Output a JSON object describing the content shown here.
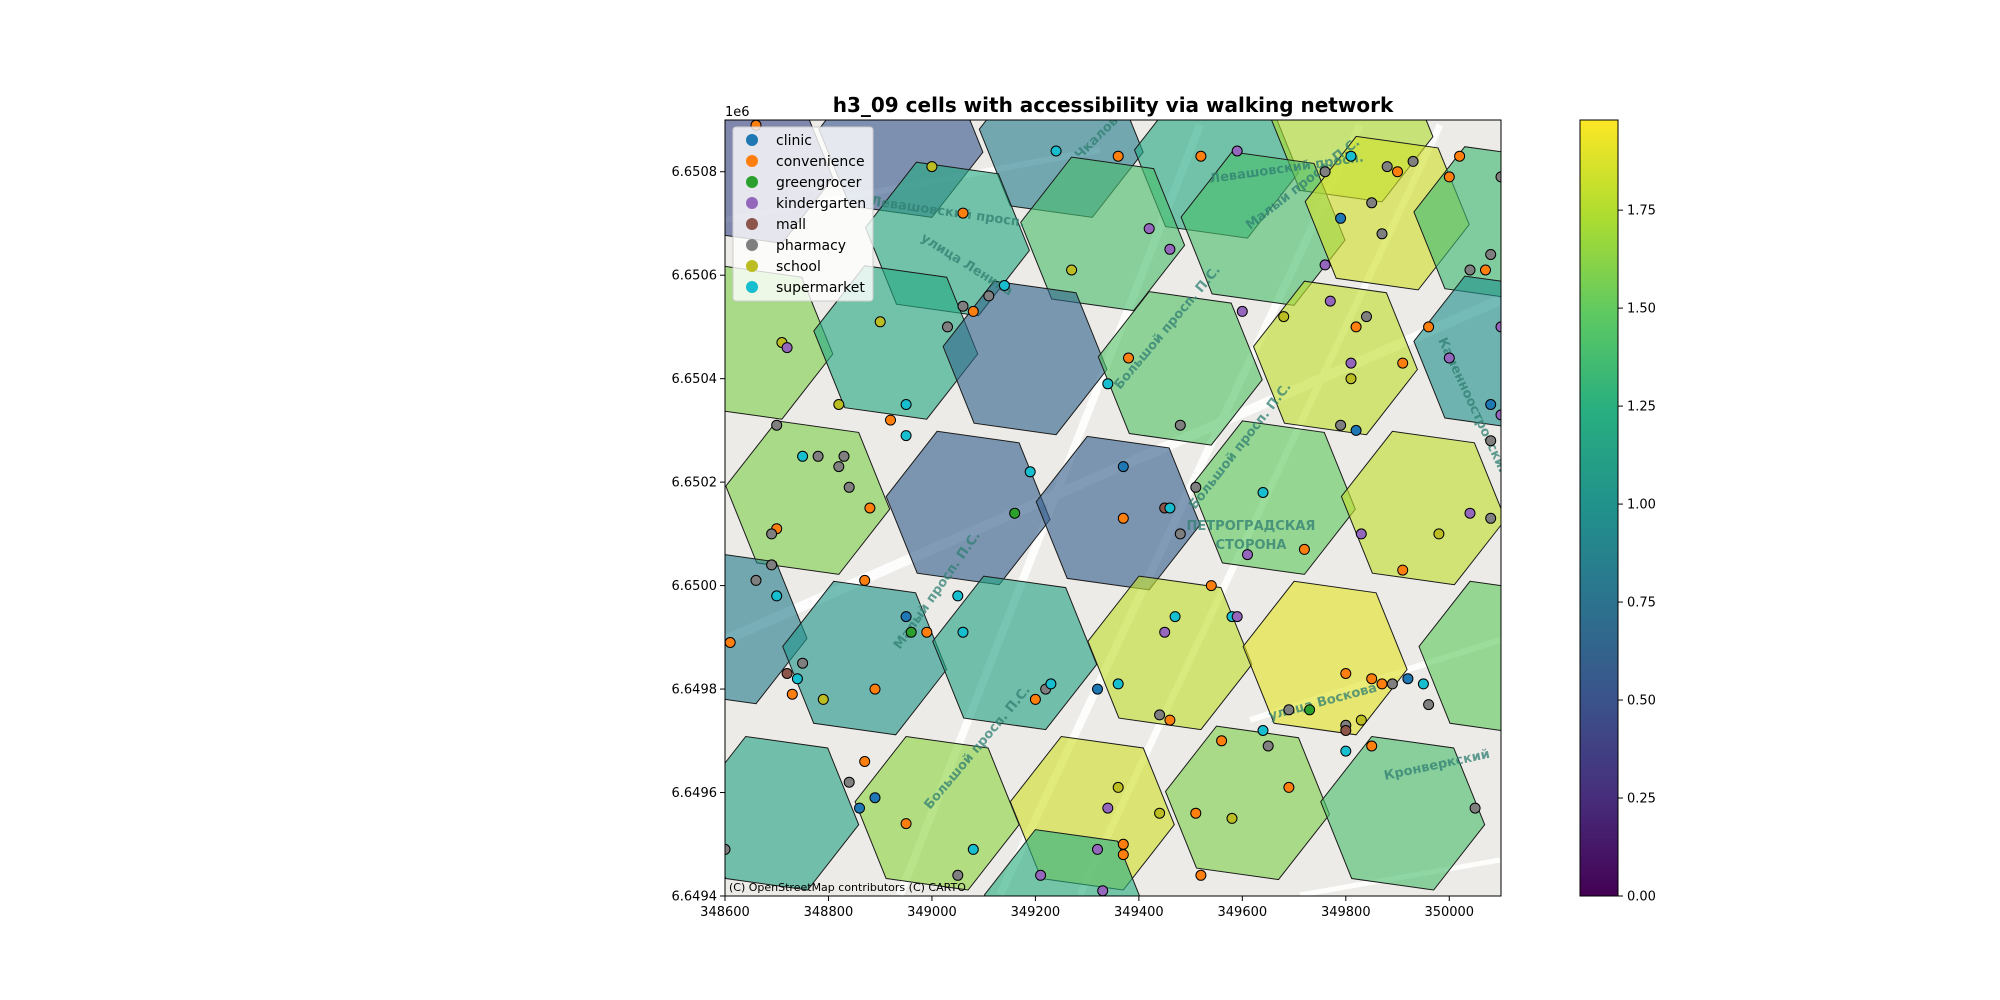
{
  "chart_data": {
    "type": "scatter",
    "title": "h3_09 cells with accessibility via walking network",
    "xlabel": "",
    "ylabel": "",
    "y_offset_label": "1e6",
    "xlim": [
      348600,
      350100
    ],
    "ylim": [
      6649400,
      6650900
    ],
    "x_ticks": [
      348600,
      348800,
      349000,
      349200,
      349400,
      349600,
      349800,
      350000
    ],
    "x_tick_labels": [
      "348600",
      "348800",
      "349000",
      "349200",
      "349400",
      "349600",
      "349800",
      "350000"
    ],
    "y_ticks": [
      6649400,
      6649600,
      6649800,
      6650000,
      6650200,
      6650400,
      6650600,
      6650800
    ],
    "y_tick_labels": [
      "6.6494",
      "6.6496",
      "6.6498",
      "6.6500",
      "6.6502",
      "6.6504",
      "6.6506",
      "6.6508"
    ],
    "grid": false,
    "legend_position": "top-left",
    "colorbar": {
      "colormap": "viridis",
      "range": [
        0,
        1.98
      ],
      "ticks": [
        0.0,
        0.25,
        0.5,
        0.75,
        1.0,
        1.25,
        1.5,
        1.75
      ],
      "tick_labels": [
        "0.00",
        "0.25",
        "0.50",
        "0.75",
        "1.00",
        "1.25",
        "1.50",
        "1.75"
      ]
    },
    "basemap_labels": [
      "ПЕТРОГРАДСКАЯ",
      "СТОРОНА",
      "Левашовский просп.",
      "улица Ленина",
      "Малый просп. П.С.",
      "Большой просп. П.С.",
      "Каменноостровский просп.",
      "улица Воскова",
      "Кронверкский",
      "Чкаловский просп."
    ],
    "attribution": "(C) OpenStreetMap contributors (C) CARTO",
    "categories": [
      {
        "name": "clinic",
        "color": "#1f77b4"
      },
      {
        "name": "convenience",
        "color": "#ff7f0e"
      },
      {
        "name": "greengrocer",
        "color": "#2ca02c"
      },
      {
        "name": "kindergarten",
        "color": "#9467bd"
      },
      {
        "name": "mall",
        "color": "#8c564b"
      },
      {
        "name": "pharmacy",
        "color": "#7f7f7f"
      },
      {
        "name": "school",
        "color": "#bcbd22"
      },
      {
        "name": "supermarket",
        "color": "#17becf"
      }
    ],
    "hex_cells": [
      {
        "x": 348650,
        "y": 6650810,
        "value": 0.45
      },
      {
        "x": 348940,
        "y": 6650860,
        "value": 0.55
      },
      {
        "x": 349250,
        "y": 6650860,
        "value": 0.85
      },
      {
        "x": 349550,
        "y": 6650820,
        "value": 1.2
      },
      {
        "x": 349810,
        "y": 6650890,
        "value": 1.75
      },
      {
        "x": 349030,
        "y": 6650670,
        "value": 1.2
      },
      {
        "x": 349330,
        "y": 6650680,
        "value": 1.4
      },
      {
        "x": 349640,
        "y": 6650690,
        "value": 1.4
      },
      {
        "x": 349880,
        "y": 6650720,
        "value": 1.85
      },
      {
        "x": 350090,
        "y": 6650700,
        "value": 1.35
      },
      {
        "x": 348650,
        "y": 6650470,
        "value": 1.6
      },
      {
        "x": 348930,
        "y": 6650470,
        "value": 1.2
      },
      {
        "x": 349180,
        "y": 6650440,
        "value": 0.65
      },
      {
        "x": 349480,
        "y": 6650420,
        "value": 1.45
      },
      {
        "x": 349780,
        "y": 6650440,
        "value": 1.8
      },
      {
        "x": 350090,
        "y": 6650450,
        "value": 1.0
      },
      {
        "x": 348760,
        "y": 6650170,
        "value": 1.6
      },
      {
        "x": 349070,
        "y": 6650150,
        "value": 0.6
      },
      {
        "x": 349360,
        "y": 6650140,
        "value": 0.6
      },
      {
        "x": 349660,
        "y": 6650170,
        "value": 1.5
      },
      {
        "x": 349950,
        "y": 6650150,
        "value": 1.8
      },
      {
        "x": 348600,
        "y": 6649920,
        "value": 0.85
      },
      {
        "x": 348870,
        "y": 6649860,
        "value": 1.05
      },
      {
        "x": 349160,
        "y": 6649870,
        "value": 1.15
      },
      {
        "x": 349460,
        "y": 6649870,
        "value": 1.8
      },
      {
        "x": 349760,
        "y": 6649860,
        "value": 1.9
      },
      {
        "x": 350100,
        "y": 6649860,
        "value": 1.5
      },
      {
        "x": 348700,
        "y": 6649560,
        "value": 1.15
      },
      {
        "x": 349010,
        "y": 6649560,
        "value": 1.65
      },
      {
        "x": 349310,
        "y": 6649560,
        "value": 1.85
      },
      {
        "x": 349610,
        "y": 6649580,
        "value": 1.6
      },
      {
        "x": 349910,
        "y": 6649560,
        "value": 1.4
      },
      {
        "x": 349260,
        "y": 6649380,
        "value": 1.25
      }
    ],
    "points": [
      {
        "x": 348660,
        "y": 6650890,
        "category": "convenience"
      },
      {
        "x": 349000,
        "y": 6650810,
        "category": "school"
      },
      {
        "x": 349060,
        "y": 6650720,
        "category": "convenience"
      },
      {
        "x": 349240,
        "y": 6650840,
        "category": "supermarket"
      },
      {
        "x": 349360,
        "y": 6650830,
        "category": "convenience"
      },
      {
        "x": 349520,
        "y": 6650830,
        "category": "convenience"
      },
      {
        "x": 349590,
        "y": 6650840,
        "category": "kindergarten"
      },
      {
        "x": 349760,
        "y": 6650800,
        "category": "pharmacy"
      },
      {
        "x": 349810,
        "y": 6650830,
        "category": "supermarket"
      },
      {
        "x": 349880,
        "y": 6650810,
        "category": "pharmacy"
      },
      {
        "x": 349900,
        "y": 6650800,
        "category": "convenience"
      },
      {
        "x": 349930,
        "y": 6650820,
        "category": "pharmacy"
      },
      {
        "x": 350000,
        "y": 6650790,
        "category": "convenience"
      },
      {
        "x": 350020,
        "y": 6650830,
        "category": "convenience"
      },
      {
        "x": 350100,
        "y": 6650790,
        "category": "pharmacy"
      },
      {
        "x": 349850,
        "y": 6650740,
        "category": "pharmacy"
      },
      {
        "x": 349790,
        "y": 6650710,
        "category": "clinic"
      },
      {
        "x": 349870,
        "y": 6650680,
        "category": "pharmacy"
      },
      {
        "x": 349420,
        "y": 6650690,
        "category": "kindergarten"
      },
      {
        "x": 349460,
        "y": 6650650,
        "category": "kindergarten"
      },
      {
        "x": 349760,
        "y": 6650620,
        "category": "kindergarten"
      },
      {
        "x": 349140,
        "y": 6650580,
        "category": "supermarket"
      },
      {
        "x": 349270,
        "y": 6650610,
        "category": "school"
      },
      {
        "x": 349110,
        "y": 6650560,
        "category": "pharmacy"
      },
      {
        "x": 349060,
        "y": 6650540,
        "category": "pharmacy"
      },
      {
        "x": 349080,
        "y": 6650530,
        "category": "convenience"
      },
      {
        "x": 349030,
        "y": 6650500,
        "category": "pharmacy"
      },
      {
        "x": 348900,
        "y": 6650510,
        "category": "school"
      },
      {
        "x": 348710,
        "y": 6650470,
        "category": "school"
      },
      {
        "x": 348720,
        "y": 6650460,
        "category": "kindergarten"
      },
      {
        "x": 349600,
        "y": 6650530,
        "category": "kindergarten"
      },
      {
        "x": 349680,
        "y": 6650520,
        "category": "school"
      },
      {
        "x": 349770,
        "y": 6650550,
        "category": "kindergarten"
      },
      {
        "x": 349840,
        "y": 6650520,
        "category": "pharmacy"
      },
      {
        "x": 349820,
        "y": 6650500,
        "category": "convenience"
      },
      {
        "x": 349960,
        "y": 6650500,
        "category": "convenience"
      },
      {
        "x": 350040,
        "y": 6650610,
        "category": "pharmacy"
      },
      {
        "x": 350070,
        "y": 6650610,
        "category": "convenience"
      },
      {
        "x": 350080,
        "y": 6650640,
        "category": "pharmacy"
      },
      {
        "x": 350100,
        "y": 6650500,
        "category": "kindergarten"
      },
      {
        "x": 349910,
        "y": 6650430,
        "category": "convenience"
      },
      {
        "x": 349810,
        "y": 6650430,
        "category": "kindergarten"
      },
      {
        "x": 349810,
        "y": 6650400,
        "category": "school"
      },
      {
        "x": 350000,
        "y": 6650440,
        "category": "kindergarten"
      },
      {
        "x": 349380,
        "y": 6650440,
        "category": "convenience"
      },
      {
        "x": 349340,
        "y": 6650390,
        "category": "supermarket"
      },
      {
        "x": 349480,
        "y": 6650310,
        "category": "pharmacy"
      },
      {
        "x": 349790,
        "y": 6650310,
        "category": "pharmacy"
      },
      {
        "x": 349820,
        "y": 6650300,
        "category": "clinic"
      },
      {
        "x": 350080,
        "y": 6650350,
        "category": "clinic"
      },
      {
        "x": 350100,
        "y": 6650330,
        "category": "kindergarten"
      },
      {
        "x": 350080,
        "y": 6650280,
        "category": "pharmacy"
      },
      {
        "x": 348700,
        "y": 6650310,
        "category": "pharmacy"
      },
      {
        "x": 348820,
        "y": 6650350,
        "category": "school"
      },
      {
        "x": 348920,
        "y": 6650320,
        "category": "convenience"
      },
      {
        "x": 348950,
        "y": 6650350,
        "category": "supermarket"
      },
      {
        "x": 348950,
        "y": 6650290,
        "category": "supermarket"
      },
      {
        "x": 348750,
        "y": 6650250,
        "category": "supermarket"
      },
      {
        "x": 348780,
        "y": 6650250,
        "category": "pharmacy"
      },
      {
        "x": 348830,
        "y": 6650250,
        "category": "pharmacy"
      },
      {
        "x": 348820,
        "y": 6650230,
        "category": "pharmacy"
      },
      {
        "x": 348840,
        "y": 6650190,
        "category": "pharmacy"
      },
      {
        "x": 348880,
        "y": 6650150,
        "category": "convenience"
      },
      {
        "x": 348700,
        "y": 6650110,
        "category": "convenience"
      },
      {
        "x": 348690,
        "y": 6650100,
        "category": "pharmacy"
      },
      {
        "x": 348690,
        "y": 6650040,
        "category": "pharmacy"
      },
      {
        "x": 348660,
        "y": 6650010,
        "category": "pharmacy"
      },
      {
        "x": 348700,
        "y": 6649980,
        "category": "supermarket"
      },
      {
        "x": 348870,
        "y": 6650010,
        "category": "convenience"
      },
      {
        "x": 349190,
        "y": 6650220,
        "category": "supermarket"
      },
      {
        "x": 349160,
        "y": 6650140,
        "category": "greengrocer"
      },
      {
        "x": 349370,
        "y": 6650230,
        "category": "clinic"
      },
      {
        "x": 349370,
        "y": 6650130,
        "category": "convenience"
      },
      {
        "x": 349450,
        "y": 6650150,
        "category": "mall"
      },
      {
        "x": 349460,
        "y": 6650150,
        "category": "supermarket"
      },
      {
        "x": 349480,
        "y": 6650100,
        "category": "pharmacy"
      },
      {
        "x": 349510,
        "y": 6650190,
        "category": "pharmacy"
      },
      {
        "x": 349640,
        "y": 6650180,
        "category": "supermarket"
      },
      {
        "x": 349610,
        "y": 6650060,
        "category": "kindergarten"
      },
      {
        "x": 349720,
        "y": 6650070,
        "category": "convenience"
      },
      {
        "x": 349540,
        "y": 6650000,
        "category": "convenience"
      },
      {
        "x": 349830,
        "y": 6650100,
        "category": "kindergarten"
      },
      {
        "x": 349910,
        "y": 6650030,
        "category": "convenience"
      },
      {
        "x": 349980,
        "y": 6650100,
        "category": "school"
      },
      {
        "x": 350040,
        "y": 6650140,
        "category": "kindergarten"
      },
      {
        "x": 350080,
        "y": 6650130,
        "category": "pharmacy"
      },
      {
        "x": 349050,
        "y": 6649980,
        "category": "supermarket"
      },
      {
        "x": 348950,
        "y": 6649940,
        "category": "clinic"
      },
      {
        "x": 348960,
        "y": 6649910,
        "category": "greengrocer"
      },
      {
        "x": 348990,
        "y": 6649910,
        "category": "convenience"
      },
      {
        "x": 349060,
        "y": 6649910,
        "category": "supermarket"
      },
      {
        "x": 348610,
        "y": 6649890,
        "category": "convenience"
      },
      {
        "x": 348750,
        "y": 6649850,
        "category": "pharmacy"
      },
      {
        "x": 348720,
        "y": 6649830,
        "category": "mall"
      },
      {
        "x": 348740,
        "y": 6649820,
        "category": "supermarket"
      },
      {
        "x": 348730,
        "y": 6649790,
        "category": "convenience"
      },
      {
        "x": 348790,
        "y": 6649780,
        "category": "school"
      },
      {
        "x": 348890,
        "y": 6649800,
        "category": "convenience"
      },
      {
        "x": 349200,
        "y": 6649780,
        "category": "convenience"
      },
      {
        "x": 349220,
        "y": 6649800,
        "category": "pharmacy"
      },
      {
        "x": 349230,
        "y": 6649810,
        "category": "supermarket"
      },
      {
        "x": 349320,
        "y": 6649800,
        "category": "clinic"
      },
      {
        "x": 349360,
        "y": 6649810,
        "category": "supermarket"
      },
      {
        "x": 349450,
        "y": 6649910,
        "category": "kindergarten"
      },
      {
        "x": 349470,
        "y": 6649940,
        "category": "supermarket"
      },
      {
        "x": 349580,
        "y": 6649940,
        "category": "supermarket"
      },
      {
        "x": 349590,
        "y": 6649940,
        "category": "kindergarten"
      },
      {
        "x": 349440,
        "y": 6649750,
        "category": "pharmacy"
      },
      {
        "x": 349460,
        "y": 6649740,
        "category": "convenience"
      },
      {
        "x": 349560,
        "y": 6649700,
        "category": "convenience"
      },
      {
        "x": 349640,
        "y": 6649720,
        "category": "supermarket"
      },
      {
        "x": 349650,
        "y": 6649690,
        "category": "pharmacy"
      },
      {
        "x": 349690,
        "y": 6649760,
        "category": "pharmacy"
      },
      {
        "x": 349730,
        "y": 6649760,
        "category": "greengrocer"
      },
      {
        "x": 349800,
        "y": 6649830,
        "category": "convenience"
      },
      {
        "x": 349850,
        "y": 6649820,
        "category": "convenience"
      },
      {
        "x": 349870,
        "y": 6649810,
        "category": "convenience"
      },
      {
        "x": 349890,
        "y": 6649810,
        "category": "pharmacy"
      },
      {
        "x": 349920,
        "y": 6649820,
        "category": "clinic"
      },
      {
        "x": 349950,
        "y": 6649810,
        "category": "supermarket"
      },
      {
        "x": 349960,
        "y": 6649770,
        "category": "pharmacy"
      },
      {
        "x": 349800,
        "y": 6649730,
        "category": "pharmacy"
      },
      {
        "x": 349800,
        "y": 6649720,
        "category": "mall"
      },
      {
        "x": 349830,
        "y": 6649740,
        "category": "school"
      },
      {
        "x": 349850,
        "y": 6649690,
        "category": "convenience"
      },
      {
        "x": 349800,
        "y": 6649680,
        "category": "supermarket"
      },
      {
        "x": 348870,
        "y": 6649660,
        "category": "convenience"
      },
      {
        "x": 348840,
        "y": 6649620,
        "category": "pharmacy"
      },
      {
        "x": 348890,
        "y": 6649590,
        "category": "clinic"
      },
      {
        "x": 348860,
        "y": 6649570,
        "category": "clinic"
      },
      {
        "x": 348950,
        "y": 6649540,
        "category": "convenience"
      },
      {
        "x": 349080,
        "y": 6649490,
        "category": "supermarket"
      },
      {
        "x": 349050,
        "y": 6649440,
        "category": "pharmacy"
      },
      {
        "x": 349210,
        "y": 6649440,
        "category": "kindergarten"
      },
      {
        "x": 349330,
        "y": 6649410,
        "category": "kindergarten"
      },
      {
        "x": 349320,
        "y": 6649490,
        "category": "kindergarten"
      },
      {
        "x": 349340,
        "y": 6649570,
        "category": "kindergarten"
      },
      {
        "x": 349360,
        "y": 6649610,
        "category": "school"
      },
      {
        "x": 349370,
        "y": 6649500,
        "category": "convenience"
      },
      {
        "x": 349370,
        "y": 6649480,
        "category": "convenience"
      },
      {
        "x": 349440,
        "y": 6649560,
        "category": "school"
      },
      {
        "x": 349510,
        "y": 6649560,
        "category": "convenience"
      },
      {
        "x": 349580,
        "y": 6649550,
        "category": "school"
      },
      {
        "x": 349520,
        "y": 6649440,
        "category": "convenience"
      },
      {
        "x": 349690,
        "y": 6649610,
        "category": "convenience"
      },
      {
        "x": 350050,
        "y": 6649570,
        "category": "pharmacy"
      },
      {
        "x": 348600,
        "y": 6649490,
        "category": "pharmacy"
      }
    ]
  }
}
